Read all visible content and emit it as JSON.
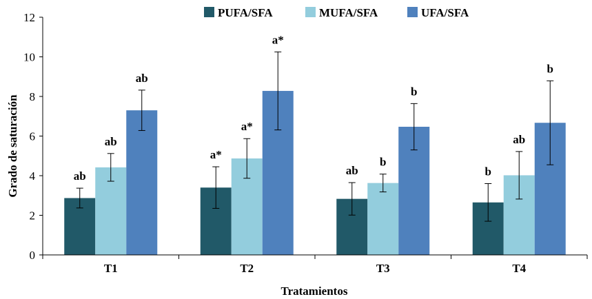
{
  "chart_data": {
    "type": "bar",
    "title": "",
    "xlabel": "Tratamientos",
    "ylabel": "Grado de saturación",
    "ylim": [
      0,
      12
    ],
    "yticks": [
      "0",
      "2",
      "4",
      "6",
      "8",
      "10",
      "12"
    ],
    "categories": [
      "T1",
      "T2",
      "T3",
      "T4"
    ],
    "legend_position": "top",
    "grid": false,
    "series": [
      {
        "name": "PUFA/SFA",
        "color": "#215968",
        "values": [
          2.87,
          3.4,
          2.83,
          2.65
        ],
        "errors": [
          0.5,
          1.05,
          0.82,
          0.95
        ],
        "labels": [
          "ab",
          "a*",
          "ab",
          "b"
        ]
      },
      {
        "name": "MUFA/SFA",
        "color": "#93CDDD",
        "values": [
          4.42,
          4.87,
          3.63,
          4.02
        ],
        "errors": [
          0.7,
          1.0,
          0.45,
          1.2
        ],
        "labels": [
          "ab",
          "a*",
          "b",
          "ab"
        ]
      },
      {
        "name": "UFA/SFA",
        "color": "#4F81BD",
        "values": [
          7.3,
          8.28,
          6.47,
          6.67
        ],
        "errors": [
          1.02,
          1.97,
          1.17,
          2.12
        ],
        "labels": [
          "ab",
          "a*",
          "b",
          "b"
        ]
      }
    ]
  }
}
